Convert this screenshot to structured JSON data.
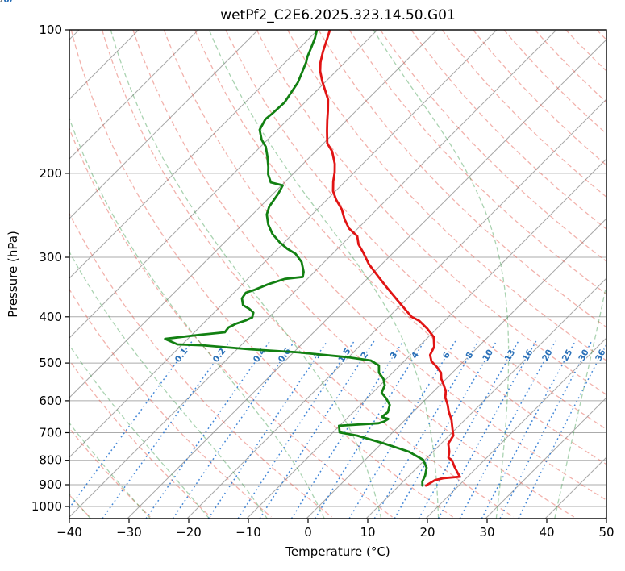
{
  "title": "wetPf2_C2E6.2025.323.14.50.G01",
  "axes": {
    "x": {
      "label": "Temperature (°C)",
      "ticks": [
        -40,
        -30,
        -20,
        -10,
        0,
        10,
        20,
        30,
        40,
        50
      ]
    },
    "y": {
      "label": "Pressure (hPa)",
      "ticks": [
        100,
        200,
        300,
        400,
        500,
        600,
        700,
        800,
        900,
        1000
      ]
    }
  },
  "colors": {
    "temperature": "#e11414",
    "dewpoint": "#128012",
    "isotherm": "#999999",
    "pressure_grid": "#ababab",
    "dry_adiabat": "rgba(227,85,70,0.45)",
    "moist_adiabat": "rgba(32,140,50,0.38)",
    "mixing_ratio": "rgba(33,113,208,0.85)",
    "label_blue": "#2a70b8",
    "label_red": "#c03030",
    "label_gray": "#808080",
    "frame": "#000000"
  },
  "chart_data": {
    "type": "line",
    "variant": "skew-t-log-p",
    "title": "wetPf2_C2E6.2025.323.14.50.G01",
    "xlabel": "Temperature (°C)",
    "ylabel": "Pressure (hPa)",
    "xlim": [
      -40,
      50
    ],
    "ylim": [
      1060,
      100
    ],
    "skew_degrees": 45,
    "grid": true,
    "isotherms": {
      "min": -120,
      "max": 50,
      "step": 10
    },
    "isotherm_label_values": [
      -100,
      -90,
      -80,
      -70,
      -60,
      -50,
      -40,
      -30,
      -20,
      -10,
      0,
      10,
      20,
      30,
      40
    ],
    "isotherm_label_theta_k": 329.15,
    "dry_adiabats": {
      "min": -40,
      "max": 250,
      "step": 10
    },
    "moist_adiabats": {
      "min": -40,
      "max": 90,
      "step": 10
    },
    "mixing_ratios_g_kg": [
      0.1,
      0.2,
      0.4,
      0.6,
      1,
      1.5,
      2,
      3,
      4,
      6,
      8,
      10,
      13,
      16,
      20,
      25,
      30,
      36
    ],
    "mixing_label_pressure_hpa": 482,
    "series": [
      {
        "name": "temperature",
        "color": "#e11414",
        "points": [
          [
            99,
            -78.2
          ],
          [
            105,
            -76.8
          ],
          [
            111,
            -75.5
          ],
          [
            117,
            -74.1
          ],
          [
            122,
            -72.7
          ],
          [
            128,
            -70.7
          ],
          [
            134,
            -68.6
          ],
          [
            140,
            -66.6
          ],
          [
            148,
            -64.7
          ],
          [
            155,
            -63.2
          ],
          [
            163,
            -61.5
          ],
          [
            173,
            -59.4
          ],
          [
            180,
            -57.2
          ],
          [
            191,
            -54.7
          ],
          [
            199,
            -53.3
          ],
          [
            208,
            -52.0
          ],
          [
            218,
            -50.4
          ],
          [
            227,
            -48.5
          ],
          [
            238,
            -45.9
          ],
          [
            250,
            -43.7
          ],
          [
            261,
            -41.5
          ],
          [
            271,
            -38.8
          ],
          [
            282,
            -37.2
          ],
          [
            293,
            -35.1
          ],
          [
            310,
            -32.2
          ],
          [
            330,
            -28.4
          ],
          [
            348,
            -25.1
          ],
          [
            370,
            -21.2
          ],
          [
            400,
            -16.2
          ],
          [
            408,
            -14.2
          ],
          [
            424,
            -11.5
          ],
          [
            441,
            -9.1
          ],
          [
            462,
            -7.4
          ],
          [
            481,
            -6.7
          ],
          [
            496,
            -5.4
          ],
          [
            510,
            -3.5
          ],
          [
            524,
            -1.9
          ],
          [
            540,
            -0.8
          ],
          [
            557,
            0.7
          ],
          [
            573,
            2.0
          ],
          [
            591,
            3.0
          ],
          [
            612,
            4.6
          ],
          [
            632,
            5.9
          ],
          [
            657,
            7.7
          ],
          [
            683,
            9.2
          ],
          [
            710,
            10.7
          ],
          [
            738,
            11.2
          ],
          [
            767,
            12.7
          ],
          [
            790,
            13.6
          ],
          [
            800,
            14.6
          ],
          [
            825,
            16.1
          ],
          [
            852,
            17.8
          ],
          [
            866,
            18.7
          ],
          [
            872,
            16.3
          ],
          [
            880,
            15.1
          ],
          [
            904,
            14.5
          ]
        ]
      },
      {
        "name": "dewpoint",
        "color": "#128012",
        "points": [
          [
            99,
            -80.4
          ],
          [
            104,
            -79.1
          ],
          [
            109,
            -78.1
          ],
          [
            114,
            -77.2
          ],
          [
            117,
            -76.5
          ],
          [
            129,
            -74.5
          ],
          [
            142,
            -73.4
          ],
          [
            150,
            -73.6
          ],
          [
            154,
            -73.8
          ],
          [
            162,
            -73.0
          ],
          [
            170,
            -71.0
          ],
          [
            176,
            -69.1
          ],
          [
            184,
            -67.3
          ],
          [
            194,
            -65.3
          ],
          [
            201,
            -64.1
          ],
          [
            209,
            -62.3
          ],
          [
            212,
            -59.8
          ],
          [
            220,
            -59.2
          ],
          [
            235,
            -58.5
          ],
          [
            244,
            -57.6
          ],
          [
            256,
            -55.7
          ],
          [
            268,
            -53.4
          ],
          [
            279,
            -50.8
          ],
          [
            288,
            -48.4
          ],
          [
            295,
            -46.2
          ],
          [
            307,
            -43.8
          ],
          [
            322,
            -41.8
          ],
          [
            330,
            -41.1
          ],
          [
            333,
            -43.8
          ],
          [
            342,
            -45.7
          ],
          [
            351,
            -47.0
          ],
          [
            356,
            -48.0
          ],
          [
            366,
            -47.7
          ],
          [
            378,
            -46.4
          ],
          [
            385,
            -44.7
          ],
          [
            392,
            -43.4
          ],
          [
            401,
            -42.8
          ],
          [
            407,
            -43.4
          ],
          [
            414,
            -44.5
          ],
          [
            421,
            -45.1
          ],
          [
            431,
            -44.9
          ],
          [
            436,
            -48.4
          ],
          [
            445,
            -53.8
          ],
          [
            457,
            -50.8
          ],
          [
            459,
            -46.5
          ],
          [
            468,
            -37.8
          ],
          [
            475,
            -29.2
          ],
          [
            486,
            -20.3
          ],
          [
            494,
            -15.7
          ],
          [
            506,
            -13.5
          ],
          [
            524,
            -12.3
          ],
          [
            540,
            -10.5
          ],
          [
            557,
            -9.2
          ],
          [
            577,
            -8.5
          ],
          [
            593,
            -6.8
          ],
          [
            612,
            -5.1
          ],
          [
            634,
            -4.2
          ],
          [
            649,
            -4.4
          ],
          [
            655,
            -3.0
          ],
          [
            664,
            -3.3
          ],
          [
            669,
            -3.9
          ],
          [
            677,
            -10.1
          ],
          [
            699,
            -8.9
          ],
          [
            710,
            -5.4
          ],
          [
            738,
            0.5
          ],
          [
            767,
            5.9
          ],
          [
            798,
            9.7
          ],
          [
            829,
            11.6
          ],
          [
            862,
            12.7
          ],
          [
            886,
            13.2
          ],
          [
            904,
            13.9
          ]
        ]
      }
    ]
  }
}
